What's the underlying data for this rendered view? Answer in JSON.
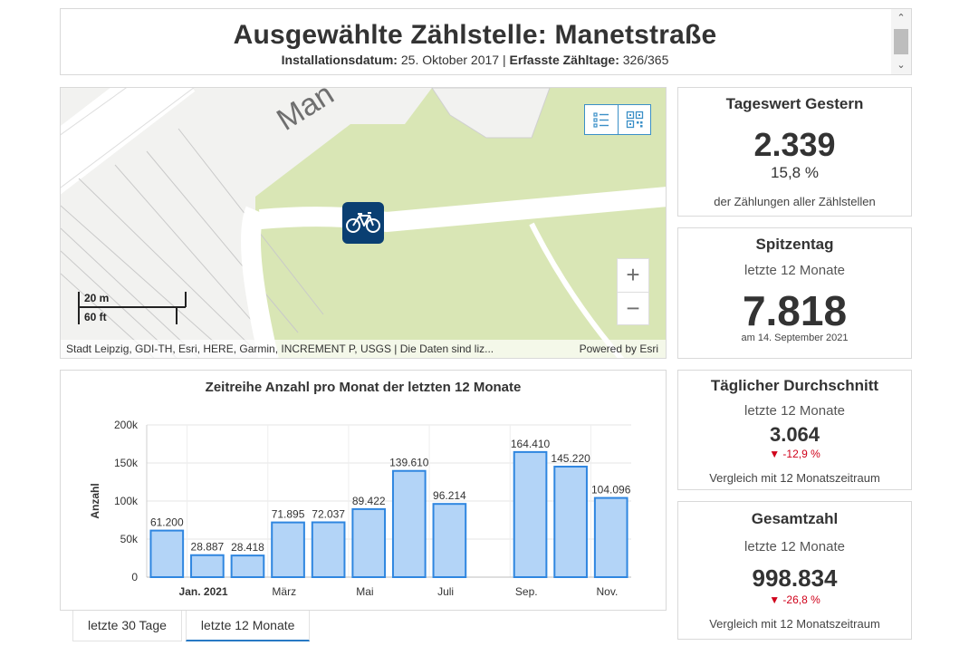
{
  "header": {
    "title": "Ausgewählte Zählstelle: Manetstraße",
    "install_label": "Installationsdatum:",
    "install_value": " 25. Oktober 2017 | ",
    "days_label": "Erfasste Zähltage:",
    "days_value": " 326/365"
  },
  "map": {
    "street_label": "Man",
    "attribution": "Stadt Leipzig, GDI-TH, Esri, HERE, Garmin, INCREMENT P, USGS | Die Daten sind liz...",
    "powered_by": "Powered by Esri",
    "scale_metric": "20 m",
    "scale_imperial": "60 ft",
    "zoom_in": "+",
    "zoom_out": "−",
    "tools": [
      "legend-list-icon",
      "qr-code-icon"
    ],
    "marker_icon": "bicycle-icon",
    "colors": {
      "park": "#d9e6b5",
      "road": "#ffffff",
      "background": "#f2f2f0",
      "marker": "#0a3f72"
    }
  },
  "kpis": {
    "yesterday": {
      "title": "Tageswert Gestern",
      "value": "2.339",
      "percent": "15,8 %",
      "note": "der Zählungen aller Zählstellen"
    },
    "peak": {
      "title": "Spitzentag",
      "period": "letzte 12 Monate",
      "value": "7.818",
      "date": "am 14. September 2021"
    },
    "average": {
      "title": "Täglicher Durchschnitt",
      "period": "letzte 12 Monate",
      "value": "3.064",
      "change": "▼ -12,9 %",
      "note": "Vergleich mit 12 Monatszeitraum"
    },
    "total": {
      "title": "Gesamtzahl",
      "period": "letzte 12 Monate",
      "value": "998.834",
      "change": "▼ -26,8 %",
      "note": "Vergleich mit 12 Monatszeitraum"
    }
  },
  "chart_data": {
    "type": "bar",
    "title": "Zeitreihe Anzahl pro Monat der letzten 12 Monate",
    "ylabel": "Anzahl",
    "xlabel": "",
    "ylim": [
      0,
      200000
    ],
    "yticks": [
      0,
      50000,
      100000,
      150000,
      200000
    ],
    "ytick_labels": [
      "0",
      "50k",
      "100k",
      "150k",
      "200k"
    ],
    "x_tick_labels": [
      "Jan. 2021",
      "März",
      "Mai",
      "Juli",
      "Sep.",
      "Nov."
    ],
    "x_tick_months": [
      1,
      3,
      5,
      7,
      9,
      11
    ],
    "months": [
      12,
      1,
      2,
      3,
      4,
      5,
      6,
      7,
      9,
      10,
      11
    ],
    "values": [
      61200,
      28887,
      28418,
      71895,
      72037,
      89422,
      139610,
      96214,
      164410,
      145220,
      104096
    ],
    "value_labels": [
      "61.200",
      "28.887",
      "28.418",
      "71.895",
      "72.037",
      "89.422",
      "139.610",
      "96.214",
      "164.410",
      "145.220",
      "104.096"
    ],
    "grid": true,
    "colors": {
      "fill": "#b3d4f7",
      "stroke": "#2f86e0"
    }
  },
  "tabs": [
    {
      "label": "letzte 30 Tage",
      "active": false
    },
    {
      "label": "letzte 12 Monate",
      "active": true
    }
  ]
}
